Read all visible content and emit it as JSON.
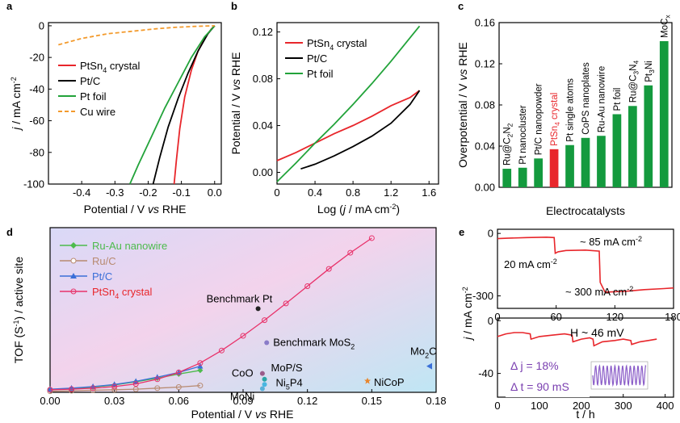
{
  "panels": [
    {
      "id": "a",
      "letter": "a",
      "type": "line",
      "xlabel_parts": [
        "Potential / V ",
        "vs",
        " RHE"
      ],
      "ylabel_parts": [
        "j",
        " / mA cm",
        "-2"
      ],
      "xlim": [
        -0.5,
        0.02
      ],
      "ylim": [
        -100,
        2
      ],
      "xticks": [
        -0.5,
        -0.4,
        -0.3,
        -0.2,
        -0.1,
        0.0
      ],
      "xtick_labels": [
        "",
        "-0.4",
        "-0.3",
        "-0.2",
        "-0.1",
        "0.0"
      ],
      "yticks": [
        -100,
        -80,
        -60,
        -40,
        -20,
        0
      ],
      "ytick_labels": [
        "-100",
        "-80",
        "-60",
        "-40",
        "-20",
        "0"
      ],
      "legend": [
        "PtSn4 crystal",
        "Pt/C",
        "Pt foil",
        "Cu wire"
      ],
      "series": [
        {
          "name": "PtSn4 crystal",
          "color": "#e8262b",
          "dash": "",
          "x": [
            0.0,
            -0.01,
            -0.03,
            -0.05,
            -0.07,
            -0.09,
            -0.105,
            -0.115,
            -0.122
          ],
          "y": [
            0,
            -2,
            -8,
            -16,
            -28,
            -45,
            -65,
            -85,
            -100
          ]
        },
        {
          "name": "Pt/C",
          "color": "#000000",
          "dash": "",
          "x": [
            0.0,
            -0.02,
            -0.05,
            -0.08,
            -0.11,
            -0.14,
            -0.165,
            -0.185
          ],
          "y": [
            0,
            -5,
            -16,
            -30,
            -46,
            -64,
            -83,
            -100
          ]
        },
        {
          "name": "Pt foil",
          "color": "#22a33a",
          "dash": "",
          "x": [
            0.0,
            -0.03,
            -0.07,
            -0.11,
            -0.15,
            -0.19,
            -0.23,
            -0.255
          ],
          "y": [
            0,
            -7,
            -20,
            -36,
            -52,
            -70,
            -88,
            -100
          ]
        },
        {
          "name": "Cu wire",
          "color": "#f39a2c",
          "dash": "5,3",
          "x": [
            -0.47,
            -0.4,
            -0.32,
            -0.25,
            -0.18,
            -0.12,
            -0.06,
            0.0
          ],
          "y": [
            -12,
            -8,
            -5,
            -3.5,
            -2,
            -1,
            -0.4,
            0
          ]
        }
      ]
    },
    {
      "id": "b",
      "letter": "b",
      "type": "line",
      "xlabel_parts": [
        "Log (",
        "j",
        " / mA cm",
        "-2",
        ")"
      ],
      "ylabel_parts": [
        "Potential / V ",
        "vs",
        " RHE"
      ],
      "xlim": [
        0,
        1.7
      ],
      "ylim": [
        -0.01,
        0.128
      ],
      "xticks": [
        0,
        0.4,
        0.8,
        1.2,
        1.6
      ],
      "xtick_labels": [
        "0",
        "0.4",
        "0.8",
        "1.2",
        "1.6"
      ],
      "yticks": [
        0,
        0.04,
        0.08,
        0.12
      ],
      "ytick_labels": [
        "0.00",
        "0.04",
        "0.08",
        "0.12"
      ],
      "legend": [
        "PtSn4 crystal",
        "Pt/C",
        "Pt foil"
      ],
      "series": [
        {
          "name": "PtSn4 crystal",
          "color": "#e8262b",
          "dash": "",
          "x": [
            0.0,
            0.2,
            0.4,
            0.6,
            0.8,
            1.0,
            1.2,
            1.4,
            1.5
          ],
          "y": [
            0.01,
            0.017,
            0.025,
            0.033,
            0.04,
            0.048,
            0.057,
            0.064,
            0.07
          ]
        },
        {
          "name": "Pt/C",
          "color": "#000000",
          "dash": "",
          "x": [
            0.25,
            0.4,
            0.6,
            0.8,
            1.0,
            1.2,
            1.4,
            1.5
          ],
          "y": [
            0.003,
            0.007,
            0.014,
            0.022,
            0.031,
            0.042,
            0.058,
            0.07
          ]
        },
        {
          "name": "Pt foil",
          "color": "#22a33a",
          "dash": "",
          "x": [
            0.0,
            0.2,
            0.4,
            0.6,
            0.8,
            1.0,
            1.2,
            1.4,
            1.5
          ],
          "y": [
            -0.008,
            0.008,
            0.025,
            0.041,
            0.058,
            0.076,
            0.095,
            0.115,
            0.125
          ]
        }
      ]
    },
    {
      "id": "c",
      "letter": "c",
      "type": "bar",
      "xlabel_parts": [
        "Electrocatalysts"
      ],
      "ylabel_parts": [
        "Overpotential / V ",
        "vs",
        " RHE"
      ],
      "ylim": [
        0,
        0.16
      ],
      "yticks": [
        0,
        0.04,
        0.08,
        0.12,
        0.16
      ],
      "ytick_labels": [
        "0.00",
        "0.04",
        "0.08",
        "0.12",
        "0.16"
      ],
      "categories": [
        "Ru@C2N2",
        "Pt nanocluster",
        "Pt/C nanopowder",
        "PtSn4 crystal",
        "Pt single atoms",
        "CoPS nanoplates",
        "Ru-Au nanowire",
        "Pt foil",
        "Ru@C3N4",
        "Pt3Ni",
        "MoCx"
      ],
      "values": [
        0.018,
        0.019,
        0.028,
        0.037,
        0.041,
        0.048,
        0.05,
        0.071,
        0.079,
        0.099,
        0.142
      ],
      "highlight_index": 3,
      "bar_color": "#149a3e",
      "highlight_color": "#e8262b"
    },
    {
      "id": "d",
      "letter": "d",
      "type": "line",
      "xlabel_parts": [
        "Potential / V ",
        "vs",
        " RHE"
      ],
      "ylabel_parts": [
        "TOF (S",
        "-1",
        ") / active site"
      ],
      "xlim": [
        0,
        0.18
      ],
      "ylim": [
        0,
        3.15
      ],
      "xticks": [
        0,
        0.03,
        0.06,
        0.09,
        0.12,
        0.15,
        0.18
      ],
      "xtick_labels": [
        "0.00",
        "0.03",
        "0.06",
        "0.09",
        "0.12",
        "0.15",
        "0.18"
      ],
      "legend": [
        "Ru-Au nanowire",
        "Ru/C",
        "Pt/C",
        "PtSn4 crystal"
      ],
      "series": [
        {
          "name": "Ru-Au nanowire",
          "color": "#4dbb4d",
          "marker": "diamond",
          "x": [
            0.0,
            0.01,
            0.02,
            0.03,
            0.04,
            0.05,
            0.06,
            0.07
          ],
          "y": [
            0.05,
            0.07,
            0.1,
            0.14,
            0.2,
            0.27,
            0.35,
            0.42
          ]
        },
        {
          "name": "Ru/C",
          "color": "#b88a70",
          "marker": "circle",
          "x": [
            0.0,
            0.01,
            0.02,
            0.03,
            0.04,
            0.05,
            0.06,
            0.07
          ],
          "y": [
            0.02,
            0.03,
            0.04,
            0.05,
            0.06,
            0.08,
            0.1,
            0.13
          ]
        },
        {
          "name": "Pt/C",
          "color": "#3a6fd8",
          "marker": "triangle",
          "x": [
            0.0,
            0.01,
            0.02,
            0.03,
            0.04,
            0.05,
            0.06,
            0.07
          ],
          "y": [
            0.06,
            0.08,
            0.11,
            0.15,
            0.21,
            0.29,
            0.38,
            0.5
          ]
        },
        {
          "name": "PtSn4 crystal",
          "color": "#e8326a",
          "marker": "circle",
          "x": [
            0.0,
            0.01,
            0.02,
            0.03,
            0.04,
            0.05,
            0.06,
            0.07,
            0.08,
            0.09,
            0.1,
            0.11,
            0.12,
            0.13,
            0.14,
            0.15
          ],
          "y": [
            0.05,
            0.06,
            0.08,
            0.11,
            0.16,
            0.25,
            0.38,
            0.56,
            0.8,
            1.08,
            1.38,
            1.7,
            2.03,
            2.36,
            2.67,
            2.95
          ]
        }
      ],
      "points": [
        {
          "label": "Benchmark Pt",
          "x": 0.097,
          "y": 1.6,
          "color": "#222222",
          "shape": "circle"
        },
        {
          "label": "Benchmark MoS2",
          "x": 0.101,
          "y": 0.95,
          "color": "#8a7cc8",
          "shape": "circle"
        },
        {
          "label": "CoO",
          "x": 0.099,
          "y": 0.36,
          "color": "#9a5b8a",
          "shape": "circle"
        },
        {
          "label": "MoP/S",
          "x": 0.1,
          "y": 0.25,
          "color": "#2aa6a6",
          "shape": "circle"
        },
        {
          "label": "Ni5P4",
          "x": 0.1,
          "y": 0.15,
          "color": "#49b6e0",
          "shape": "circle"
        },
        {
          "label": "MoNi",
          "x": 0.099,
          "y": 0.07,
          "color": "#5ab0d8",
          "shape": "circle"
        },
        {
          "label": "NiCoP",
          "x": 0.148,
          "y": 0.22,
          "color": "#e8862c",
          "shape": "star"
        },
        {
          "label": "Mo2C",
          "x": 0.177,
          "y": 0.5,
          "color": "#3a6fd8",
          "shape": "triangle"
        }
      ]
    },
    {
      "id": "e1",
      "letter": "e",
      "type": "line",
      "xlim": [
        0,
        180
      ],
      "ylim": [
        -360,
        20
      ],
      "xticks": [
        0,
        60,
        120,
        180
      ],
      "xtick_labels": [
        "0",
        "60",
        "120",
        "180"
      ],
      "yticks": [
        -300,
        0
      ],
      "ytick_labels": [
        "-300",
        "0"
      ],
      "annotations": [
        "~ 85 mA cm-2",
        "20 mA cm-2",
        "~ 300 mA cm-2"
      ],
      "series": [
        {
          "name": "",
          "color": "#e8262b",
          "x": [
            0,
            10,
            30,
            50,
            58,
            59,
            62,
            70,
            90,
            104,
            105,
            110,
            130,
            150,
            170,
            180
          ],
          "y": [
            -25,
            -23,
            -20,
            -18,
            -20,
            -95,
            -88,
            -82,
            -80,
            -85,
            -235,
            -282,
            -278,
            -270,
            -265,
            -262
          ]
        }
      ]
    },
    {
      "id": "e2",
      "letter": "",
      "type": "line",
      "xlabel_parts": [
        "t / h"
      ],
      "xlim": [
        0,
        420
      ],
      "ylim": [
        -58,
        2
      ],
      "xticks": [
        0,
        100,
        200,
        300,
        400
      ],
      "xtick_labels": [
        "0",
        "100",
        "200",
        "300",
        "400"
      ],
      "yticks": [
        -40,
        0
      ],
      "ytick_labels": [
        "-40",
        "0"
      ],
      "annotations": [
        "Η ~ 46 mV",
        "Δ j = 18%",
        "Δ t = 90 mS"
      ],
      "series": [
        {
          "name": "",
          "color": "#e8262b",
          "x": [
            0,
            20,
            40,
            60,
            78,
            80,
            100,
            130,
            160,
            178,
            180,
            200,
            220,
            228,
            230,
            250,
            280,
            300,
            318,
            320,
            340,
            360,
            380
          ],
          "y": [
            -12,
            -10,
            -9,
            -9,
            -10,
            -14,
            -12,
            -11,
            -10,
            -11,
            -16,
            -14,
            -13,
            -14,
            -19,
            -16,
            -15,
            -14,
            -15,
            -18,
            -16,
            -15,
            -14
          ]
        }
      ],
      "ylabel_shared_parts": [
        "j",
        " / mA cm",
        "-2"
      ]
    }
  ]
}
